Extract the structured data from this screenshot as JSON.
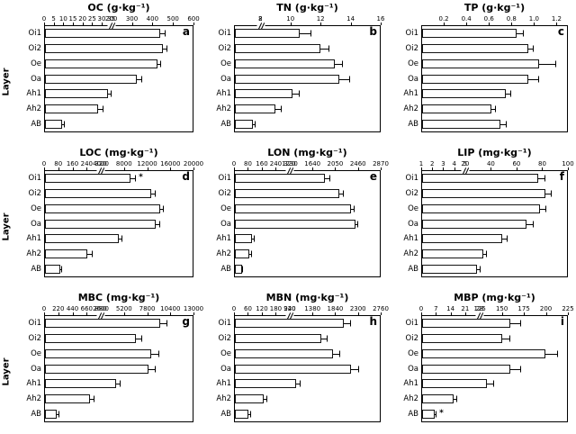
{
  "figure": {
    "ylabel": "Layer",
    "categories": [
      "Oi1",
      "Oi2",
      "Oe",
      "Oa",
      "Ah1",
      "Ah2",
      "AB"
    ],
    "bar_fill": "#ffffff",
    "line_color": "#000000"
  },
  "chart_data": [
    {
      "label": "a",
      "type": "bar",
      "orientation": "horizontal",
      "title": "OC (g·kg⁻¹)",
      "values": [
        440,
        455,
        425,
        325,
        33,
        28,
        9
      ],
      "errors": [
        25,
        20,
        18,
        28,
        3,
        3,
        1.5
      ],
      "axis": {
        "seg1": {
          "min": 0,
          "max": 35,
          "ticks": [
            "0",
            "5",
            "10",
            "15",
            "20",
            "25",
            "30",
            "35"
          ]
        },
        "seg2": {
          "min": 200,
          "max": 600,
          "ticks": [
            "200",
            "300",
            "400",
            "500",
            "600"
          ]
        },
        "break_frac": 0.45
      },
      "annotations": []
    },
    {
      "label": "b",
      "type": "bar",
      "orientation": "horizontal",
      "title": "TN (g·kg⁻¹)",
      "values": [
        10.6,
        12.0,
        13.0,
        13.3,
        10.1,
        9.0,
        1.4
      ],
      "errors": [
        0.8,
        0.6,
        0.5,
        0.7,
        0.5,
        0.4,
        0.2
      ],
      "axis": {
        "seg1": {
          "min": 0,
          "max": 2,
          "ticks": [
            "2"
          ]
        },
        "seg2": {
          "min": 8,
          "max": 16,
          "ticks": [
            "8",
            "10",
            "12",
            "14",
            "16"
          ]
        },
        "break_frac": 0.18
      },
      "annotations": []
    },
    {
      "label": "c",
      "type": "bar",
      "orientation": "horizontal",
      "title": "TP (g·kg⁻¹)",
      "values": [
        0.85,
        0.95,
        1.05,
        0.95,
        0.75,
        0.62,
        0.7
      ],
      "errors": [
        0.06,
        0.05,
        0.15,
        0.1,
        0.05,
        0.04,
        0.06
      ],
      "axis": {
        "seg1": {
          "min": 0,
          "max": 1.3,
          "ticks": [
            "0.2",
            "0.4",
            "0.6",
            "0.8",
            "1.0",
            "1.2"
          ]
        }
      },
      "annotations": []
    },
    {
      "label": "d",
      "type": "bar",
      "orientation": "horizontal",
      "title": "LOC (mg·kg⁻¹)",
      "values": [
        9200,
        12800,
        14300,
        13500,
        7100,
        240,
        85
      ],
      "errors": [
        900,
        800,
        700,
        900,
        600,
        30,
        15
      ],
      "axis": {
        "seg1": {
          "min": 0,
          "max": 320,
          "ticks": [
            "0",
            "80",
            "160",
            "240",
            "320"
          ]
        },
        "seg2": {
          "min": 4000,
          "max": 20000,
          "ticks": [
            "4000",
            "8000",
            "12000",
            "16000",
            "20000"
          ]
        },
        "break_frac": 0.38
      },
      "annotations": [
        {
          "row": "Oi1",
          "text": "*"
        }
      ]
    },
    {
      "label": "e",
      "type": "bar",
      "orientation": "horizontal",
      "title": "LON (mg·kg⁻¹)",
      "values": [
        1870,
        2130,
        2340,
        2420,
        100,
        85,
        40
      ],
      "errors": [
        90,
        80,
        70,
        60,
        15,
        12,
        8
      ],
      "axis": {
        "seg1": {
          "min": 0,
          "max": 320,
          "ticks": [
            "0",
            "80",
            "160",
            "240",
            "320"
          ]
        },
        "seg2": {
          "min": 1230,
          "max": 2870,
          "ticks": [
            "1230",
            "1640",
            "2050",
            "2460",
            "2870"
          ]
        },
        "break_frac": 0.38
      },
      "annotations": []
    },
    {
      "label": "f",
      "type": "bar",
      "orientation": "horizontal",
      "title": "LIP (mg·kg⁻¹)",
      "values": [
        77,
        83,
        79,
        68,
        49,
        34,
        29
      ],
      "errors": [
        6,
        5,
        5,
        6,
        4,
        3,
        3
      ],
      "axis": {
        "seg1": {
          "min": 1,
          "max": 5,
          "ticks": [
            "1",
            "2",
            "3",
            "4",
            "5"
          ]
        },
        "seg2": {
          "min": 20,
          "max": 100,
          "ticks": [
            "20",
            "40",
            "60",
            "80",
            "100"
          ]
        },
        "break_frac": 0.3
      },
      "annotations": []
    },
    {
      "label": "g",
      "type": "bar",
      "orientation": "horizontal",
      "title": "MBC (mg·kg⁻¹)",
      "values": [
        9300,
        6600,
        8300,
        8000,
        4300,
        700,
        190
      ],
      "errors": [
        800,
        700,
        900,
        800,
        500,
        80,
        30
      ],
      "axis": {
        "seg1": {
          "min": 0,
          "max": 880,
          "ticks": [
            "0",
            "220",
            "440",
            "660",
            "880"
          ]
        },
        "seg2": {
          "min": 2600,
          "max": 13000,
          "ticks": [
            "2600",
            "5200",
            "7800",
            "10400",
            "13000"
          ]
        },
        "break_frac": 0.38
      },
      "annotations": []
    },
    {
      "label": "h",
      "type": "bar",
      "orientation": "horizontal",
      "title": "MBN (mg·kg⁻¹)",
      "values": [
        2020,
        1570,
        1810,
        2170,
        1040,
        125,
        60
      ],
      "errors": [
        150,
        120,
        140,
        160,
        100,
        15,
        10
      ],
      "axis": {
        "seg1": {
          "min": 0,
          "max": 240,
          "ticks": [
            "0",
            "60",
            "120",
            "180",
            "240"
          ]
        },
        "seg2": {
          "min": 920,
          "max": 2760,
          "ticks": [
            "920",
            "1380",
            "1840",
            "2300",
            "2760"
          ]
        },
        "break_frac": 0.38
      },
      "annotations": []
    },
    {
      "label": "i",
      "type": "bar",
      "orientation": "horizontal",
      "title": "MBP (mg·kg⁻¹)",
      "values": [
        160,
        150,
        200,
        160,
        133,
        15,
        6
      ],
      "errors": [
        12,
        10,
        15,
        12,
        8,
        2,
        1
      ],
      "axis": {
        "seg1": {
          "min": 0,
          "max": 28,
          "ticks": [
            "0",
            "7",
            "14",
            "21",
            "28"
          ]
        },
        "seg2": {
          "min": 125,
          "max": 225,
          "ticks": [
            "125",
            "150",
            "175",
            "200",
            "225"
          ]
        },
        "break_frac": 0.4
      },
      "annotations": [
        {
          "row": "AB",
          "text": "*"
        }
      ]
    }
  ]
}
